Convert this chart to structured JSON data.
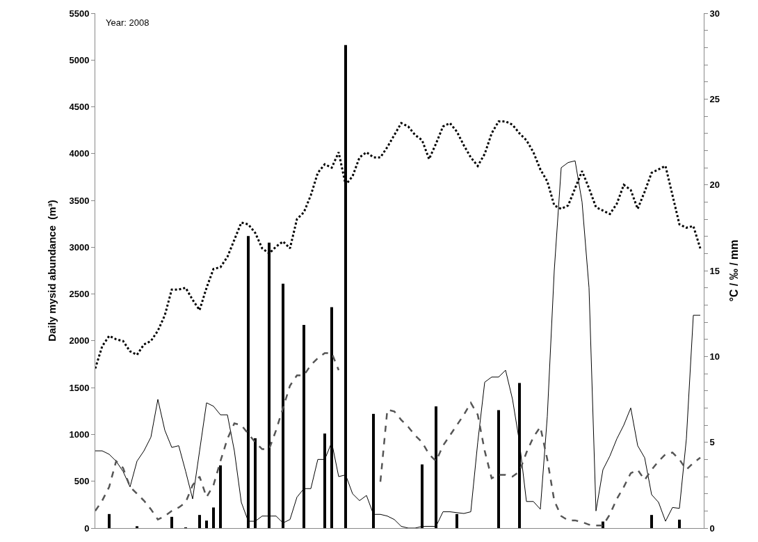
{
  "chart_data": {
    "type": "bar",
    "ylabel": "Daily mysid abundance  (m³)",
    "y2label": "°C / ‰ / mm",
    "annotations": [
      "Year: 2008"
    ],
    "categories": [
      null,
      null,
      null,
      null,
      null,
      null,
      null,
      null,
      null,
      null,
      null,
      null,
      null,
      null,
      null,
      null,
      null,
      null,
      null,
      null,
      null,
      null,
      null,
      null,
      null,
      null,
      null,
      null,
      null,
      null,
      null,
      null,
      null,
      null,
      null,
      null,
      null,
      null,
      null,
      null,
      null,
      null,
      null,
      null,
      null,
      null,
      null,
      null,
      null,
      null,
      null,
      null,
      null,
      null,
      null,
      null,
      null,
      null,
      null,
      null,
      null,
      null,
      null,
      null,
      null,
      null,
      null,
      null,
      null,
      null,
      null,
      null,
      null,
      null,
      null,
      null,
      null,
      null,
      null,
      null,
      null,
      null,
      null,
      null,
      null,
      null,
      null,
      null
    ],
    "series": [
      {
        "color": "#000000",
        "values": [
          null,
          null,
          150,
          null,
          null,
          null,
          20,
          null,
          null,
          null,
          null,
          120,
          null,
          5,
          null,
          140,
          80,
          220,
          670,
          null,
          null,
          null,
          3120,
          960,
          null,
          3050,
          null,
          2610,
          null,
          null,
          2170,
          null,
          null,
          1010,
          2360,
          null,
          5160,
          null,
          null,
          null,
          1220,
          null,
          null,
          null,
          null,
          null,
          null,
          680,
          null,
          1300,
          null,
          null,
          150,
          null,
          null,
          null,
          null,
          null,
          1260,
          null,
          null,
          1550,
          null,
          null,
          null,
          null,
          null,
          null,
          null,
          null,
          null,
          null,
          null,
          70,
          null,
          null,
          null,
          null,
          null,
          null,
          140,
          null,
          null,
          null,
          90,
          null,
          null,
          null
        ]
      },
      {
        "type": "line",
        "axis": "y2",
        "color": "#000000",
        "line_style": "dotted",
        "values": [
          9.3,
          10.6,
          11.2,
          11.0,
          10.9,
          10.3,
          10.1,
          10.7,
          10.9,
          11.5,
          12.4,
          13.9,
          13.9,
          14.0,
          13.3,
          12.7,
          14.0,
          15.1,
          15.2,
          15.8,
          16.8,
          17.8,
          17.7,
          17.2,
          16.3,
          16.0,
          16.4,
          16.7,
          16.3,
          18.0,
          18.4,
          19.4,
          20.7,
          21.2,
          21.0,
          21.9,
          20.0,
          20.5,
          21.6,
          21.9,
          21.6,
          21.6,
          22.2,
          22.9,
          23.6,
          23.4,
          22.9,
          22.6,
          21.5,
          22.4,
          23.4,
          23.6,
          23.1,
          22.3,
          21.6,
          21.1,
          21.8,
          23.0,
          23.7,
          23.7,
          23.5,
          23.0,
          22.6,
          21.9,
          20.9,
          20.2,
          18.8,
          18.6,
          18.8,
          19.8,
          20.8,
          19.8,
          18.7,
          18.5,
          18.3,
          18.9,
          20.0,
          19.7,
          18.6,
          19.6,
          20.7,
          20.9,
          21.1,
          19.4,
          17.7,
          17.5,
          17.6,
          16.3
        ]
      },
      {
        "type": "line",
        "axis": "y2",
        "color": "#000000",
        "line_style": "solid",
        "values": [
          4.5,
          4.5,
          4.3,
          3.9,
          3.3,
          2.4,
          3.9,
          4.5,
          5.3,
          7.5,
          5.7,
          4.7,
          4.8,
          3.3,
          1.7,
          4.5,
          7.3,
          7.1,
          6.6,
          6.6,
          4.5,
          1.5,
          0.4,
          0.4,
          0.7,
          0.7,
          0.7,
          0.3,
          0.5,
          1.8,
          2.3,
          2.3,
          4.0,
          4.0,
          5.0,
          3.0,
          3.1,
          2.0,
          1.6,
          1.9,
          0.8,
          0.8,
          0.7,
          0.5,
          0.1,
          0,
          0,
          0.1,
          0.1,
          0.1,
          0.95,
          0.95,
          0.9,
          0.85,
          0.95,
          5.0,
          8.5,
          8.8,
          8.8,
          9.2,
          7.5,
          5.0,
          1.55,
          1.55,
          1.1,
          6.5,
          15.0,
          21.0,
          21.3,
          21.4,
          19.0,
          14.0,
          1.0,
          3.4,
          4.2,
          5.2,
          6.0,
          7.0,
          4.8,
          4.1,
          1.95,
          1.5,
          0.4,
          1.2,
          1.15,
          5.2,
          12.4,
          12.4
        ]
      },
      {
        "type": "line",
        "axis": "y2",
        "color": "#555555",
        "line_style": "dashed",
        "values": [
          1.0,
          1.6,
          2.4,
          3.9,
          3.5,
          2.4,
          2.0,
          1.6,
          1.1,
          0.5,
          0.7,
          1.0,
          1.2,
          1.5,
          2.5,
          3.0,
          1.8,
          2.5,
          3.9,
          5.2,
          6.1,
          6.0,
          5.5,
          5.0,
          4.6,
          4.6,
          5.7,
          7.0,
          8.3,
          8.9,
          8.9,
          9.5,
          9.9,
          10.2,
          10.2,
          9.2,
          null,
          null,
          null,
          null,
          null,
          2.7,
          6.9,
          6.8,
          6.3,
          5.9,
          5.4,
          5.0,
          4.3,
          3.9,
          4.8,
          5.4,
          6.0,
          6.6,
          7.3,
          6.6,
          4.5,
          2.9,
          3.1,
          3.1,
          3.0,
          3.3,
          4.4,
          5.3,
          5.9,
          4.0,
          1.6,
          0.7,
          0.45,
          0.45,
          0.35,
          0.2,
          0.15,
          0.15,
          0.8,
          1.7,
          2.4,
          3.2,
          3.4,
          2.8,
          3.4,
          3.9,
          4.3,
          4.4,
          4.0,
          3.4,
          3.8,
          4.1
        ]
      }
    ],
    "ylim": [
      0,
      5500
    ],
    "yticks": [
      0,
      500,
      1000,
      1500,
      2000,
      2500,
      3000,
      3500,
      4000,
      4500,
      5000,
      5500
    ],
    "y2lim": [
      0,
      30
    ],
    "y2ticks": [
      0,
      {
        "value": 1,
        "label": null
      },
      {
        "value": 2,
        "label": null
      },
      {
        "value": 3,
        "label": null
      },
      {
        "value": 4,
        "label": null
      },
      5,
      {
        "value": 6,
        "label": null
      },
      {
        "value": 7,
        "label": null
      },
      {
        "value": 8,
        "label": null
      },
      {
        "value": 9,
        "label": null
      },
      10,
      {
        "value": 11,
        "label": null
      },
      {
        "value": 12,
        "label": null
      },
      {
        "value": 13,
        "label": null
      },
      {
        "value": 14,
        "label": null
      },
      15,
      {
        "value": 16,
        "label": null
      },
      {
        "value": 17,
        "label": null
      },
      {
        "value": 18,
        "label": null
      },
      {
        "value": 19,
        "label": null
      },
      20,
      {
        "value": 21,
        "label": null
      },
      {
        "value": 22,
        "label": null
      },
      {
        "value": 23,
        "label": null
      },
      {
        "value": 24,
        "label": null
      },
      25,
      {
        "value": 26,
        "label": null
      },
      {
        "value": 27,
        "label": null
      },
      {
        "value": 28,
        "label": null
      },
      {
        "value": 29,
        "label": null
      },
      30
    ]
  }
}
